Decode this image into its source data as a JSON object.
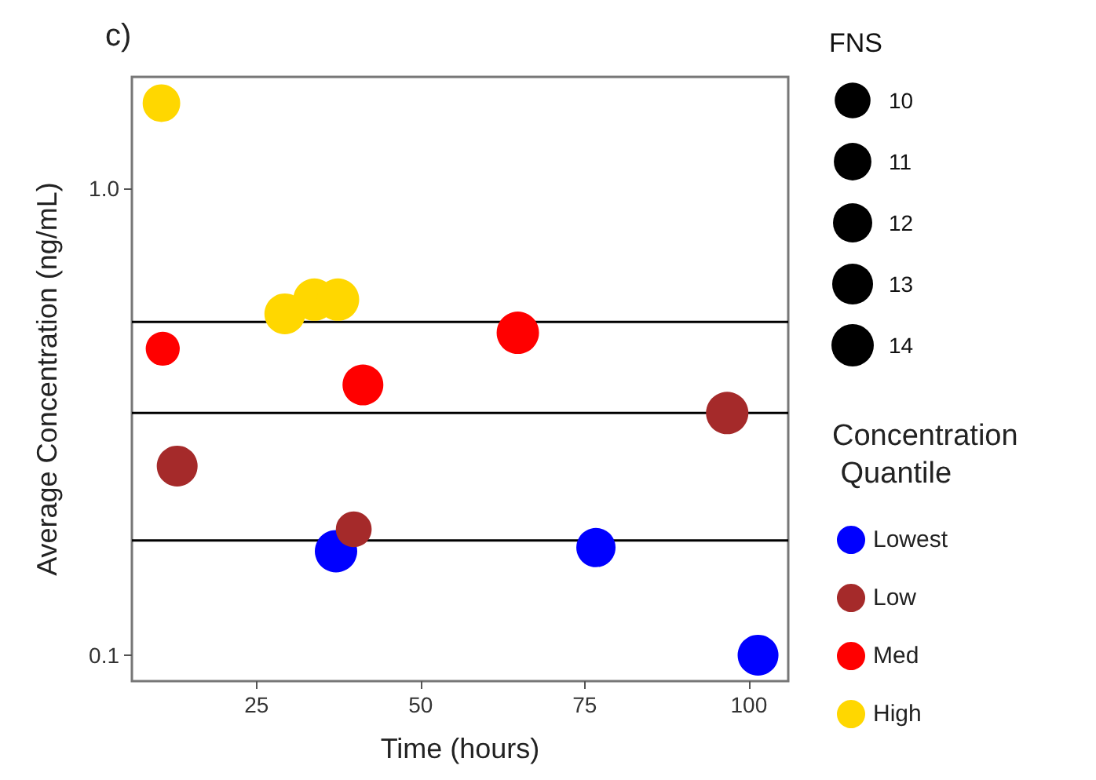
{
  "chart_data": {
    "type": "bubble",
    "title": "c)",
    "xlabel": "Time (hours)",
    "ylabel": "Average Concentration (ng/mL)",
    "legend_title": "Concentration\nQuantile",
    "annotations": [
      "FNS"
    ],
    "log": "y",
    "xlim": [
      6,
      106
    ],
    "xticks": [
      25,
      50,
      75,
      100
    ],
    "ylim": [
      0.088,
      1.73
    ],
    "yticks": [
      {
        "value": 0.1,
        "label": "0.1"
      },
      {
        "value": 1,
        "label": "1.0"
      }
    ],
    "legend": "right",
    "size_legend": [
      10,
      11,
      12,
      13,
      14
    ],
    "series": [
      {
        "name": "Lowest",
        "color": "#0000ff",
        "x": [
          37.1,
          76.7,
          101.4
        ],
        "values": [
          0.167,
          0.17,
          0.1
        ],
        "sizes": [
          14,
          12,
          13
        ]
      },
      {
        "name": "Low",
        "color": "#a52a2a",
        "x": [
          12.9,
          39.8,
          96.7
        ],
        "values": [
          0.254,
          0.186,
          0.33
        ],
        "sizes": [
          13,
          10,
          14
        ]
      },
      {
        "name": "Med",
        "color": "#ff0000",
        "x": [
          10.7,
          41.2,
          64.8
        ],
        "values": [
          0.453,
          0.379,
          0.49
        ],
        "sizes": [
          9,
          13,
          14
        ]
      },
      {
        "name": "High",
        "color": "#ffd700",
        "x": [
          10.5,
          29.3,
          33.8,
          37.4
        ],
        "values": [
          1.52,
          0.538,
          0.577,
          0.577
        ],
        "sizes": [
          11,
          13,
          14,
          14
        ]
      }
    ],
    "ref_lines": [
      {
        "axis": "y",
        "value": 0.517,
        "color": "#000000"
      },
      {
        "axis": "y",
        "value": 0.33,
        "color": "#000000"
      },
      {
        "axis": "y",
        "value": 0.176,
        "color": "#000000"
      }
    ]
  }
}
